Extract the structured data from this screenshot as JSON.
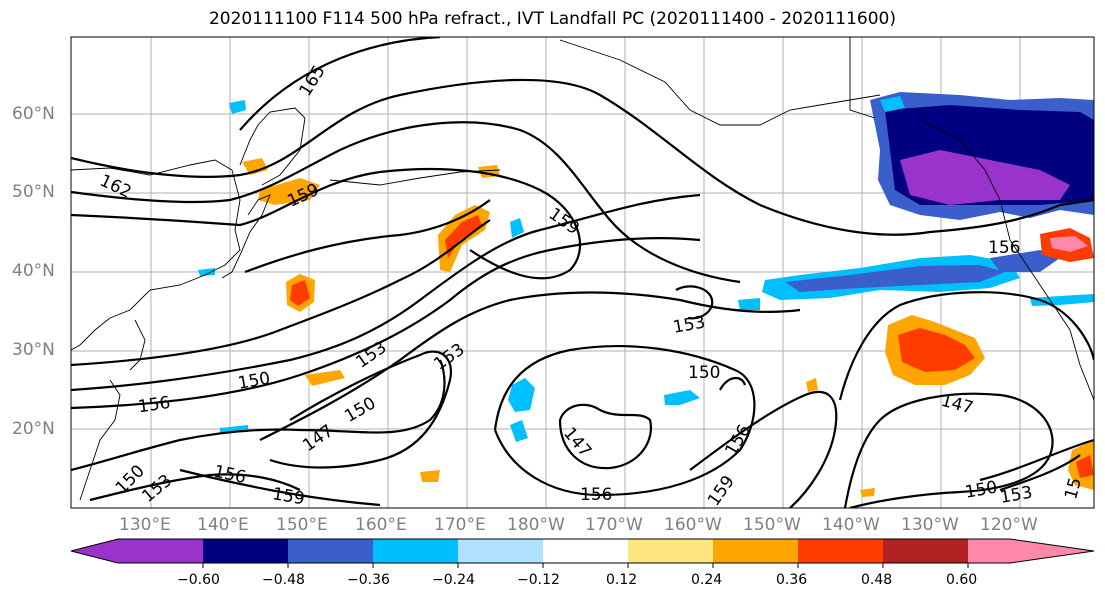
{
  "title": "2020111100 F114 500 hPa refract., IVT Landfall PC (2020111400 - 2020111600)",
  "lat_labels": [
    "60°N",
    "50°N",
    "40°N",
    "30°N",
    "20°N"
  ],
  "lon_labels": [
    "130°E",
    "140°E",
    "150°E",
    "160°E",
    "170°E",
    "180°W",
    "170°W",
    "160°W",
    "150°W",
    "140°W",
    "130°W",
    "120°W"
  ],
  "contour_labels": [
    "165",
    "162",
    "159",
    "159",
    "156",
    "153",
    "153",
    "153",
    "150",
    "150",
    "150",
    "147",
    "147",
    "156",
    "156",
    "159",
    "150",
    "153",
    "159",
    "147",
    "150",
    "153",
    "15",
    "156"
  ],
  "colorbar": {
    "colors": [
      "#9933cc",
      "#000080",
      "#3a5fcd",
      "#00bfff",
      "#b0e2ff",
      "#ffffff",
      "#ffe680",
      "#ffa500",
      "#ff3c00",
      "#b22222",
      "#ff88aa"
    ],
    "tick_labels": [
      "−0.60",
      "−0.48",
      "−0.36",
      "−0.24",
      "−0.12",
      "0.12",
      "0.24",
      "0.36",
      "0.48",
      "0.60"
    ]
  }
}
